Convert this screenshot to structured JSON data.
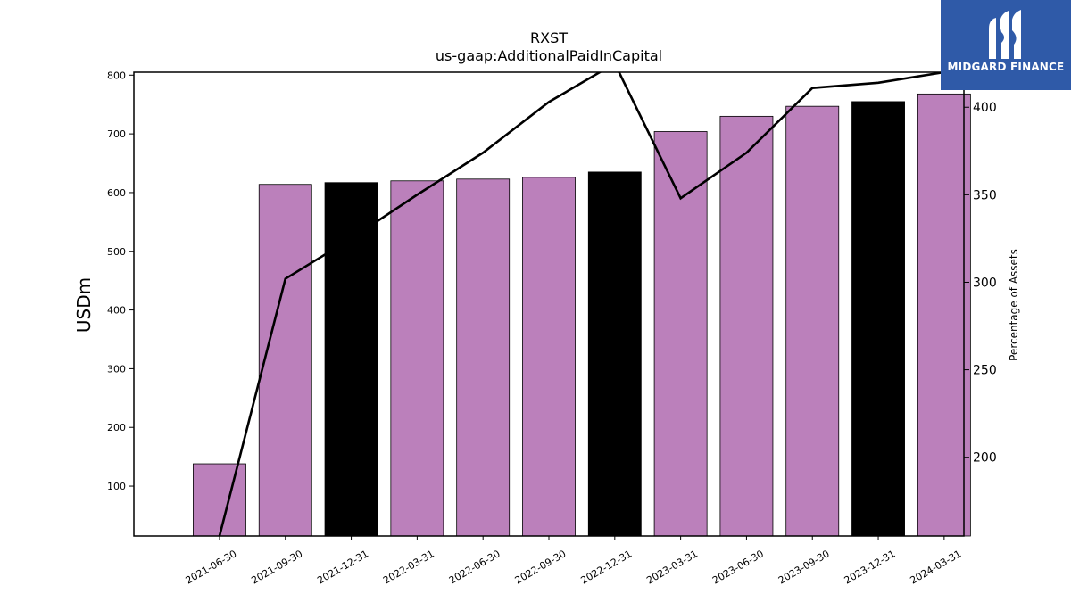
{
  "chart_data": {
    "type": "bar",
    "title": "RXST",
    "subtitle": "us-gaap:AdditionalPaidInCapital",
    "ylabel": "USDm",
    "y2label": "Percentage of Assets",
    "ylim": [
      15,
      805
    ],
    "y2lim": [
      155,
      420
    ],
    "yticks": [
      100,
      200,
      300,
      400,
      500,
      600,
      700,
      800
    ],
    "y2ticks": [
      200,
      250,
      300,
      350,
      400
    ],
    "categories": [
      "2021-06-30",
      "2021-09-30",
      "2021-12-31",
      "2022-03-31",
      "2022-06-30",
      "2022-09-30",
      "2022-12-31",
      "2023-03-31",
      "2023-06-30",
      "2023-09-30",
      "2023-12-31",
      "2024-03-31"
    ],
    "values": [
      138,
      614,
      617,
      620,
      623,
      626,
      635,
      704,
      730,
      747,
      755,
      768
    ],
    "bar_colors": [
      "#bb80bb",
      "#bb80bb",
      "#000000",
      "#bb80bb",
      "#bb80bb",
      "#bb80bb",
      "#000000",
      "#bb80bb",
      "#bb80bb",
      "#bb80bb",
      "#000000",
      "#bb80bb"
    ],
    "line_values": [
      155,
      302,
      325,
      350,
      374,
      403,
      425,
      348,
      374,
      411,
      414,
      420
    ],
    "line_color": "#000000"
  },
  "logo": {
    "text": "MIDGARD FINANCE",
    "bg_color": "#2f5aa8"
  }
}
